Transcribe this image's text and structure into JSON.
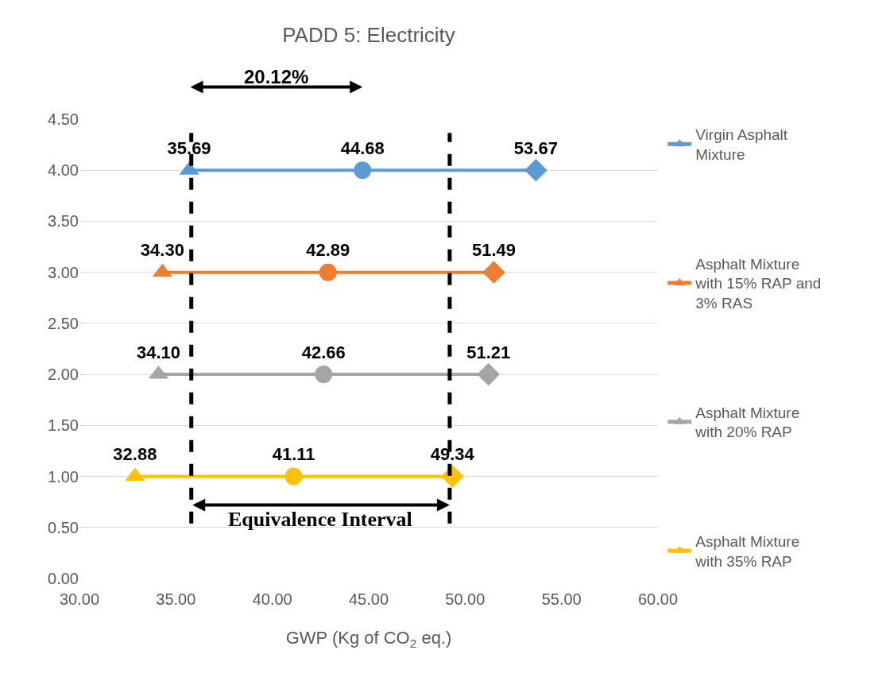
{
  "chart_data": {
    "type": "scatter",
    "title": "PADD 5: Electricity",
    "xlabel": "GWP (Kg of CO$_{2}$ eq.)",
    "xlim": [
      30,
      60
    ],
    "xticks": [
      {
        "value": 30,
        "label": "30.00"
      },
      {
        "value": 35,
        "label": "35.00"
      },
      {
        "value": 40,
        "label": "40.00"
      },
      {
        "value": 45,
        "label": "45.00"
      },
      {
        "value": 50,
        "label": "50.00"
      },
      {
        "value": 55,
        "label": "55.00"
      },
      {
        "value": 60,
        "label": "60.00"
      }
    ],
    "ylim": [
      0,
      4.5
    ],
    "yticks": [
      {
        "value": 0,
        "label": "0.00"
      },
      {
        "value": 0.5,
        "label": "0.50"
      },
      {
        "value": 1,
        "label": "1.00"
      },
      {
        "value": 1.5,
        "label": "1.50"
      },
      {
        "value": 2,
        "label": "2.00"
      },
      {
        "value": 2.5,
        "label": "2.50"
      },
      {
        "value": 3,
        "label": "3.00"
      },
      {
        "value": 3.5,
        "label": "3.50"
      },
      {
        "value": 4,
        "label": "4.00"
      },
      {
        "value": 4.5,
        "label": "4.50"
      }
    ],
    "grid": "y",
    "legend": "right",
    "line_style": "solid",
    "orientation": "horizontal",
    "marker": [
      "triangle",
      "circle",
      "diamond"
    ],
    "series": [
      {
        "name": "Virgin Asphalt Mixture",
        "color": "#5b9bd5",
        "values": [
          35.69,
          44.68,
          53.67
        ],
        "x": [
          4,
          4,
          4
        ],
        "value_labels": [
          "35.69",
          "44.68",
          "53.67"
        ]
      },
      {
        "name": "Asphalt Mixture with 15% RAP and 3% RAS",
        "color": "#ed7d31",
        "values": [
          34.3,
          42.89,
          51.49
        ],
        "x": [
          3,
          3,
          3
        ],
        "value_labels": [
          "34.30",
          "42.89",
          "51.49"
        ]
      },
      {
        "name": "Asphalt Mixture with 20% RAP",
        "color": "#a5a5a5",
        "values": [
          34.1,
          42.66,
          51.21
        ],
        "x": [
          2,
          2,
          2
        ],
        "value_labels": [
          "34.10",
          "42.66",
          "51.21"
        ]
      },
      {
        "name": "Asphalt Mixture with 35% RAP",
        "color": "#ffc000",
        "values": [
          32.88,
          41.11,
          49.34
        ],
        "x": [
          1,
          1,
          1
        ],
        "value_labels": [
          "32.88",
          "41.11",
          "49.34"
        ]
      }
    ],
    "ref_lines": [
      {
        "axis": "x",
        "value": 35.8,
        "color": "#000000",
        "line_style": "dashed"
      },
      {
        "axis": "x",
        "value": 49.2,
        "color": "#000000",
        "line_style": "dashed"
      }
    ],
    "annotations": [
      "20.12%",
      "Equivalence Interval"
    ]
  }
}
